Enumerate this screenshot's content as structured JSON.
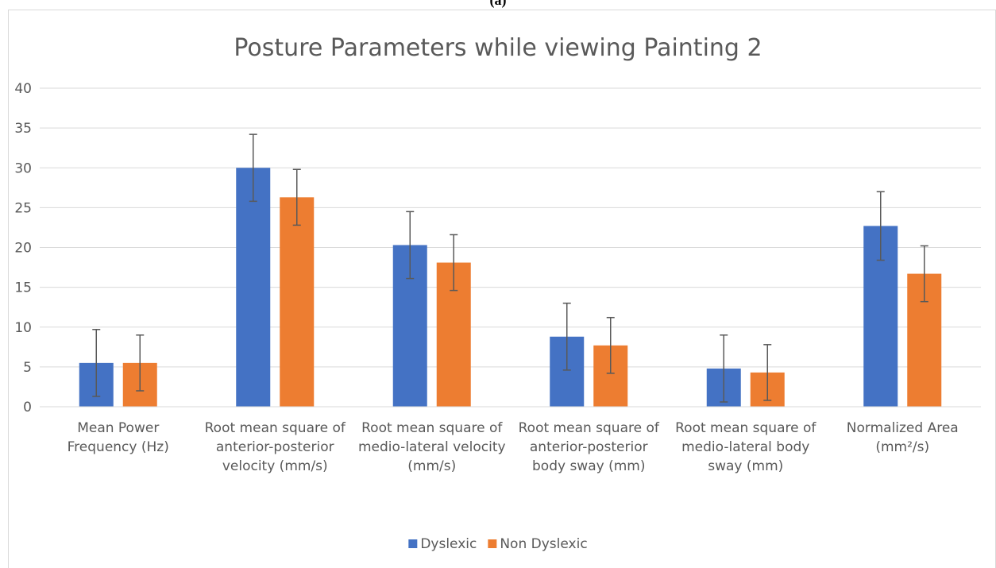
{
  "chart_data": {
    "type": "bar",
    "caption": "(a)",
    "title": "Posture Parameters while viewing Painting 2",
    "categories": [
      "Mean Power Frequency (Hz)",
      "Root mean square of anterior-posterior velocity (mm/s)",
      "Root mean square of medio-lateral velocity (mm/s)",
      "Root mean square of anterior-posterior body sway (mm)",
      "Root mean square of medio-lateral body sway (mm)",
      "Normalized Area (mm²/s)"
    ],
    "series": [
      {
        "name": "Dyslexic",
        "color": "#4472c4",
        "values": [
          5.5,
          30,
          20.3,
          8.8,
          4.8,
          22.7
        ],
        "errors": [
          4.2,
          4.2,
          4.2,
          4.2,
          4.2,
          4.3
        ]
      },
      {
        "name": "Non Dyslexic",
        "color": "#ed7d31",
        "values": [
          5.5,
          26.3,
          18.1,
          7.7,
          4.3,
          16.7
        ],
        "errors": [
          3.5,
          3.5,
          3.5,
          3.5,
          3.5,
          3.5
        ]
      }
    ],
    "ylim": [
      0,
      40
    ],
    "yticks": [
      0,
      5,
      10,
      15,
      20,
      25,
      30,
      35,
      40
    ],
    "grid": true,
    "legend": "bottom"
  }
}
